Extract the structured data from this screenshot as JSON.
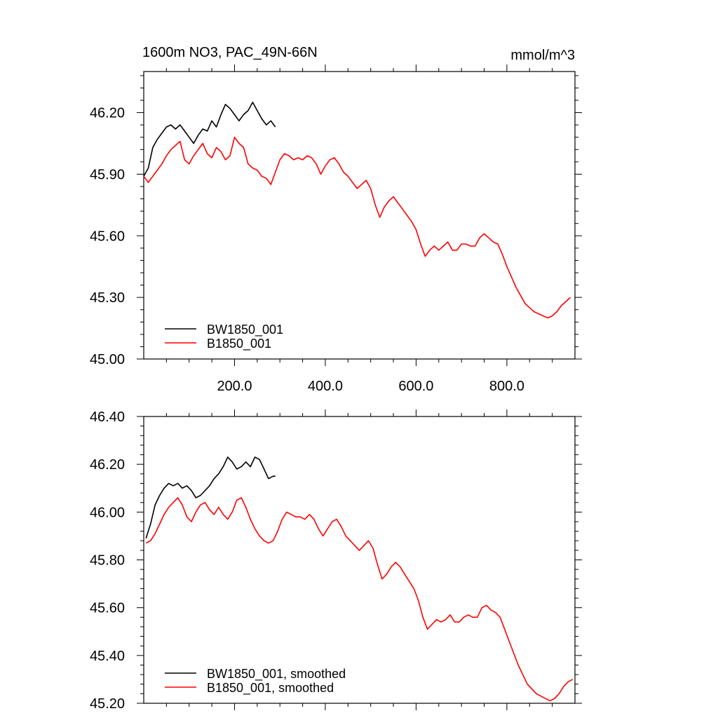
{
  "chart_data": [
    {
      "type": "line",
      "title": "1600m NO3, PAC_49N-66N",
      "units": "mmol/m^3",
      "xlim": [
        0,
        950
      ],
      "ylim": [
        45.0,
        46.4
      ],
      "xticks": [
        200,
        400,
        600,
        800
      ],
      "xtick_labels": [
        "200.0",
        "400.0",
        "600.0",
        "800.0"
      ],
      "yticks": [
        45.0,
        45.3,
        45.6,
        45.9,
        46.2
      ],
      "ytick_labels": [
        "45.00",
        "45.30",
        "45.60",
        "45.90",
        "46.20"
      ],
      "legend_position": "bottom-left",
      "series": [
        {
          "name": "BW1850_001",
          "color": "#000000",
          "x": [
            0,
            10,
            20,
            30,
            40,
            50,
            60,
            70,
            80,
            90,
            100,
            110,
            120,
            130,
            140,
            150,
            160,
            170,
            180,
            190,
            200,
            210,
            220,
            230,
            240,
            250,
            260,
            270,
            280,
            290
          ],
          "y": [
            45.89,
            45.93,
            46.03,
            46.07,
            46.1,
            46.13,
            46.14,
            46.12,
            46.14,
            46.11,
            46.08,
            46.05,
            46.09,
            46.12,
            46.11,
            46.16,
            46.13,
            46.19,
            46.24,
            46.22,
            46.19,
            46.16,
            46.19,
            46.21,
            46.25,
            46.21,
            46.17,
            46.14,
            46.16,
            46.13
          ]
        },
        {
          "name": "B1850_001",
          "color": "#ff0000",
          "x": [
            0,
            10,
            20,
            30,
            40,
            50,
            60,
            70,
            80,
            90,
            100,
            110,
            120,
            130,
            140,
            150,
            160,
            170,
            180,
            190,
            200,
            210,
            220,
            230,
            240,
            250,
            260,
            270,
            280,
            290,
            300,
            310,
            320,
            330,
            340,
            350,
            360,
            370,
            380,
            390,
            400,
            410,
            420,
            430,
            440,
            450,
            460,
            470,
            480,
            490,
            500,
            510,
            520,
            530,
            540,
            550,
            560,
            570,
            580,
            590,
            600,
            610,
            620,
            630,
            640,
            650,
            660,
            670,
            680,
            690,
            700,
            710,
            720,
            730,
            740,
            750,
            760,
            770,
            780,
            790,
            800,
            810,
            820,
            830,
            840,
            850,
            860,
            870,
            880,
            890,
            900,
            910,
            920,
            930,
            940
          ],
          "y": [
            45.89,
            45.86,
            45.89,
            45.92,
            45.95,
            45.99,
            46.02,
            46.04,
            46.06,
            45.97,
            45.95,
            45.99,
            46.02,
            46.05,
            46.0,
            45.98,
            46.03,
            46.01,
            45.97,
            45.99,
            46.08,
            46.05,
            46.03,
            45.95,
            45.93,
            45.92,
            45.89,
            45.88,
            45.85,
            45.91,
            45.97,
            46.0,
            45.99,
            45.97,
            45.98,
            45.97,
            45.99,
            45.98,
            45.95,
            45.9,
            45.94,
            45.97,
            45.98,
            45.95,
            45.91,
            45.89,
            45.86,
            45.83,
            45.85,
            45.87,
            45.83,
            45.75,
            45.69,
            45.74,
            45.77,
            45.79,
            45.76,
            45.73,
            45.7,
            45.67,
            45.63,
            45.56,
            45.5,
            45.53,
            45.55,
            45.53,
            45.55,
            45.57,
            45.53,
            45.53,
            45.56,
            45.56,
            45.55,
            45.55,
            45.59,
            45.61,
            45.59,
            45.57,
            45.56,
            45.51,
            45.45,
            45.4,
            45.35,
            45.31,
            45.27,
            45.25,
            45.23,
            45.22,
            45.21,
            45.2,
            45.21,
            45.23,
            45.26,
            45.28,
            45.3
          ]
        }
      ]
    },
    {
      "type": "line",
      "xlim": [
        0,
        950
      ],
      "ylim": [
        45.2,
        46.4
      ],
      "xticks": [
        200,
        400,
        600,
        800
      ],
      "yticks": [
        45.2,
        45.4,
        45.6,
        45.8,
        46.0,
        46.2,
        46.4
      ],
      "ytick_labels": [
        "45.20",
        "45.40",
        "45.60",
        "45.80",
        "46.00",
        "46.20",
        "46.40"
      ],
      "legend_position": "bottom-left",
      "series": [
        {
          "name": "BW1850_001, smoothed",
          "color": "#000000",
          "x": [
            5,
            15,
            25,
            35,
            45,
            55,
            65,
            75,
            85,
            95,
            105,
            115,
            125,
            135,
            145,
            155,
            165,
            175,
            185,
            195,
            205,
            215,
            225,
            235,
            245,
            255,
            265,
            275,
            285,
            290
          ],
          "y": [
            45.89,
            45.95,
            46.03,
            46.07,
            46.1,
            46.12,
            46.11,
            46.12,
            46.1,
            46.11,
            46.09,
            46.06,
            46.07,
            46.09,
            46.11,
            46.14,
            46.16,
            46.19,
            46.23,
            46.21,
            46.18,
            46.19,
            46.21,
            46.19,
            46.23,
            46.22,
            46.18,
            46.14,
            46.15,
            46.15
          ]
        },
        {
          "name": "B1850_001, smoothed",
          "color": "#ff0000",
          "x": [
            5,
            15,
            25,
            35,
            45,
            55,
            65,
            75,
            85,
            95,
            105,
            115,
            125,
            135,
            145,
            155,
            165,
            175,
            185,
            195,
            205,
            215,
            225,
            235,
            245,
            255,
            265,
            275,
            285,
            295,
            305,
            315,
            325,
            335,
            345,
            355,
            365,
            375,
            385,
            395,
            405,
            415,
            425,
            435,
            445,
            455,
            465,
            475,
            485,
            495,
            505,
            515,
            525,
            535,
            545,
            555,
            565,
            575,
            585,
            595,
            605,
            615,
            625,
            635,
            645,
            655,
            665,
            675,
            685,
            695,
            705,
            715,
            725,
            735,
            745,
            755,
            765,
            775,
            785,
            795,
            805,
            815,
            825,
            835,
            845,
            855,
            865,
            875,
            885,
            895,
            905,
            915,
            925,
            935,
            945
          ],
          "y": [
            45.87,
            45.88,
            45.91,
            45.95,
            45.99,
            46.02,
            46.04,
            46.06,
            46.03,
            45.98,
            45.96,
            46.0,
            46.03,
            46.04,
            46.01,
            45.99,
            46.02,
            45.99,
            45.97,
            46.0,
            46.05,
            46.06,
            46.02,
            45.97,
            45.93,
            45.9,
            45.88,
            45.87,
            45.88,
            45.92,
            45.97,
            46.0,
            45.99,
            45.98,
            45.98,
            45.97,
            45.99,
            45.97,
            45.93,
            45.9,
            45.93,
            45.96,
            45.97,
            45.94,
            45.9,
            45.88,
            45.86,
            45.84,
            45.86,
            45.88,
            45.85,
            45.78,
            45.72,
            45.74,
            45.77,
            45.79,
            45.77,
            45.74,
            45.71,
            45.68,
            45.63,
            45.56,
            45.51,
            45.53,
            45.55,
            45.54,
            45.55,
            45.57,
            45.54,
            45.54,
            45.56,
            45.57,
            45.56,
            45.56,
            45.6,
            45.61,
            45.59,
            45.58,
            45.56,
            45.51,
            45.46,
            45.41,
            45.36,
            45.32,
            45.28,
            45.26,
            45.24,
            45.23,
            45.22,
            45.21,
            45.22,
            45.24,
            45.27,
            45.29,
            45.3
          ]
        }
      ]
    }
  ]
}
